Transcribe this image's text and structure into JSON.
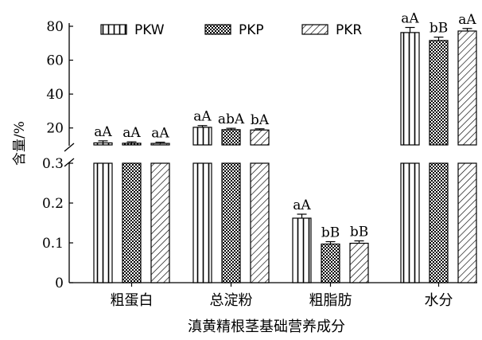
{
  "chart_data": {
    "type": "bar",
    "title": "",
    "xlabel": "滇黄精根茎基础营养成分",
    "ylabel": "含量/%",
    "categories": [
      "粗蛋白",
      "总淀粉",
      "粗脂肪",
      "水分"
    ],
    "legend_position": "top",
    "grid": false,
    "y_break": {
      "lower_range": [
        0,
        0.3
      ],
      "upper_range": [
        10,
        80
      ],
      "lower_ticks": [
        "0",
        "0.1",
        "0.2",
        "0.3"
      ],
      "upper_ticks": [
        "20",
        "40",
        "60",
        "80"
      ]
    },
    "series": [
      {
        "name": "PKW",
        "pattern": "vertical-lines",
        "values": [
          11.2,
          20.4,
          0.162,
          76.3
        ],
        "errors": [
          1.2,
          1.0,
          0.01,
          3.0
        ],
        "labels": [
          "aA",
          "aA",
          "aA",
          "aA"
        ]
      },
      {
        "name": "PKP",
        "pattern": "checkered",
        "values": [
          11.0,
          19.0,
          0.097,
          71.6
        ],
        "errors": [
          0.8,
          0.8,
          0.006,
          2.0
        ],
        "labels": [
          "aA",
          "abA",
          "bB",
          "bB"
        ]
      },
      {
        "name": "PKR",
        "pattern": "diagonal-lines",
        "values": [
          10.9,
          18.8,
          0.099,
          77.2
        ],
        "errors": [
          0.7,
          0.7,
          0.006,
          1.5
        ],
        "labels": [
          "aA",
          "bA",
          "bB",
          "aA"
        ]
      }
    ]
  }
}
